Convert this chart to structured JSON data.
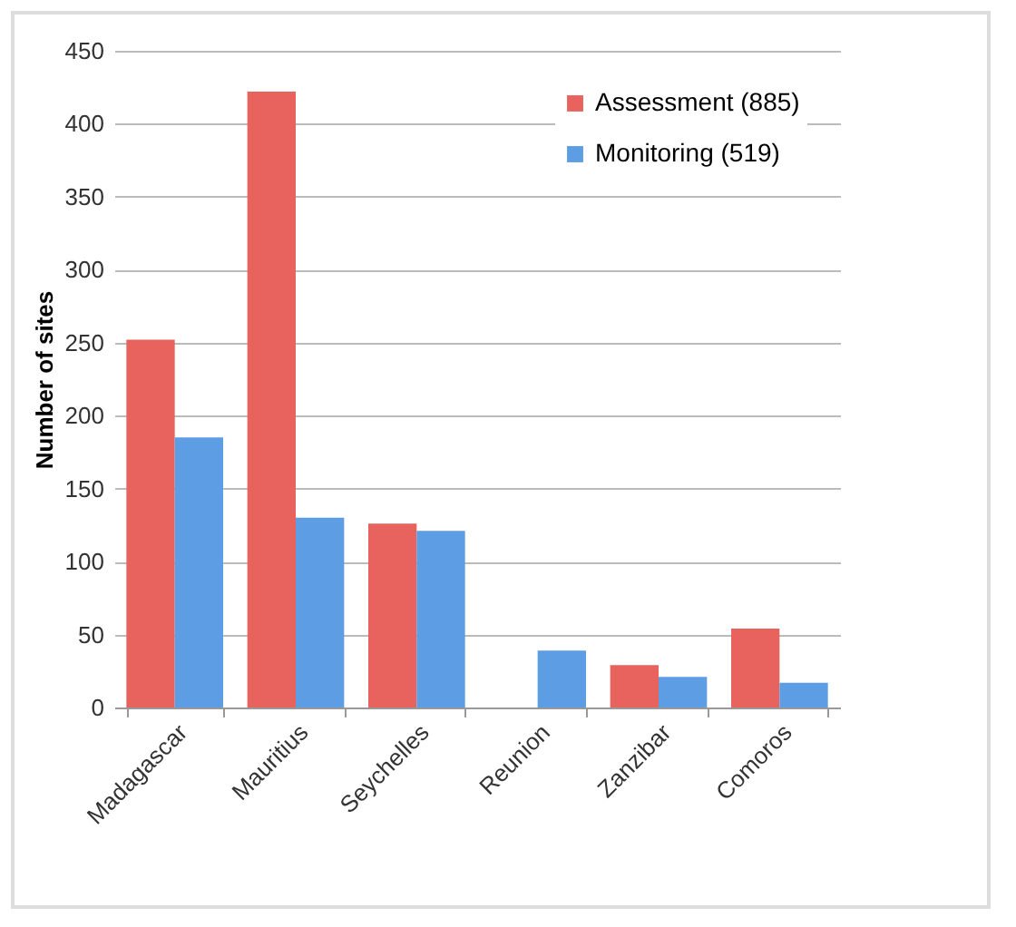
{
  "chart_data": {
    "type": "bar",
    "ylabel": "Number of sites",
    "categories": [
      "Madagascar",
      "Mauritius",
      "Seychelles",
      "Reunion",
      "Zanzibar",
      "Comoros"
    ],
    "series": [
      {
        "name": "Assessment (885)",
        "color": "#e8635d",
        "values": [
          252,
          422,
          126,
          0,
          29,
          54
        ]
      },
      {
        "name": "Monitoring (519)",
        "color": "#5d9de3",
        "values": [
          185,
          130,
          121,
          39,
          21,
          17
        ]
      }
    ],
    "ylim": [
      0,
      450
    ],
    "yticks": [
      0,
      50,
      100,
      150,
      200,
      250,
      300,
      350,
      400,
      450
    ],
    "grid": "y",
    "legend": "top right"
  }
}
